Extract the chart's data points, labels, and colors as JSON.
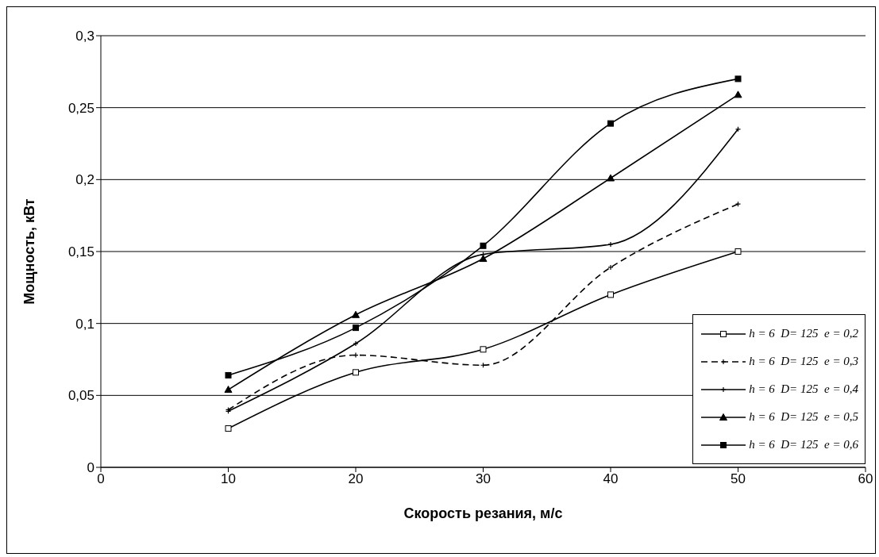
{
  "chart_data": {
    "type": "line",
    "xlabel": "Скорость резания, м/с",
    "ylabel": "Мощность, кВт",
    "x": [
      10,
      20,
      30,
      40,
      50
    ],
    "xlim": [
      0,
      60
    ],
    "xticks": [
      0,
      10,
      20,
      30,
      40,
      50,
      60
    ],
    "ylim": [
      0,
      0.3
    ],
    "yticks": [
      {
        "value": 0,
        "label": "0"
      },
      {
        "value": 0.05,
        "label": "0,05"
      },
      {
        "value": 0.1,
        "label": "0,1"
      },
      {
        "value": 0.15,
        "label": "0,15"
      },
      {
        "value": 0.2,
        "label": "0,2"
      },
      {
        "value": 0.25,
        "label": "0,25"
      },
      {
        "value": 0.3,
        "label": "0,3"
      }
    ],
    "grid": "y",
    "legend": "bottom right",
    "series": [
      {
        "name": "h = 6  D= 125  e = 0,2",
        "color": "#000000",
        "marker": "square",
        "values": [
          0.027,
          0.066,
          0.082,
          0.12,
          0.15
        ]
      },
      {
        "name": "h = 6  D= 125  e = 0,3",
        "color": "#000000",
        "marker": "cross",
        "line_style": "dashed",
        "values": [
          0.04,
          0.078,
          0.071,
          0.139,
          0.183
        ]
      },
      {
        "name": "h = 6  D= 125  e = 0,4",
        "color": "#000000",
        "marker": "cross",
        "values": [
          0.039,
          0.086,
          0.148,
          0.155,
          0.235
        ]
      },
      {
        "name": "h = 6  D= 125  e = 0,5",
        "color": "#000000",
        "marker": "triangle",
        "values": [
          0.054,
          0.106,
          0.145,
          0.201,
          0.259
        ]
      },
      {
        "name": "h = 6  D= 125  e = 0,6",
        "color": "#000000",
        "marker": "square",
        "values": [
          0.064,
          0.097,
          0.154,
          0.239,
          0.27
        ]
      }
    ]
  }
}
